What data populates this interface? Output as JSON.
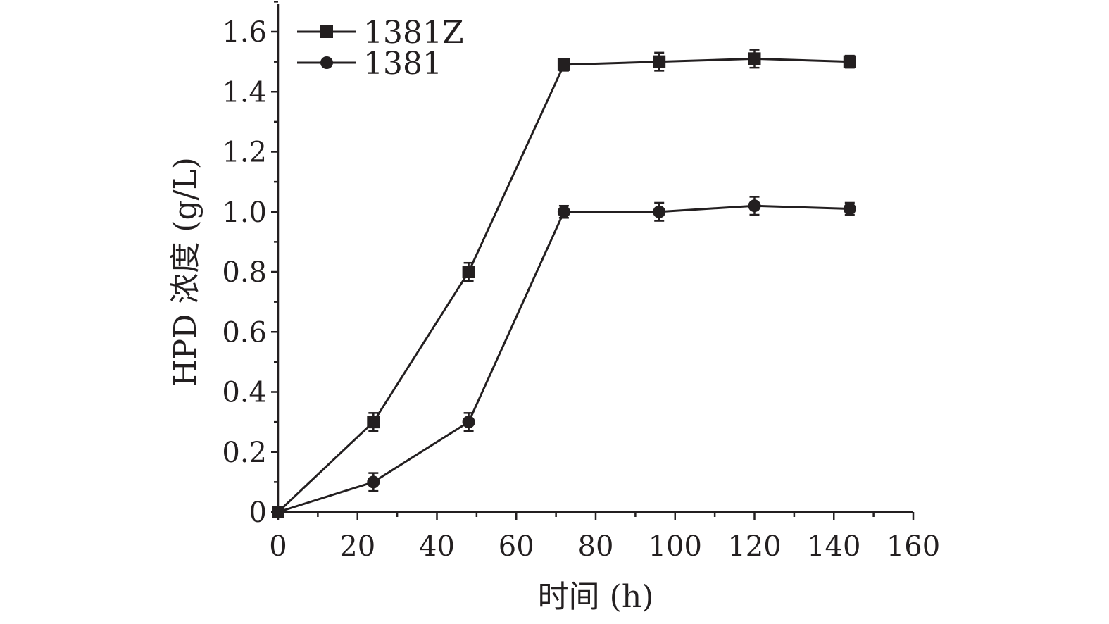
{
  "chart_data": {
    "type": "line",
    "xlabel": "时间 (h)",
    "ylabel": "HPD 浓度 (g/L)",
    "xlim": [
      0,
      160
    ],
    "ylim": [
      0,
      1.7
    ],
    "xticks": [
      0,
      20,
      40,
      60,
      80,
      100,
      120,
      140,
      160
    ],
    "xtick_labels": [
      "0",
      "20",
      "40",
      "60",
      "80",
      "100",
      "120",
      "140",
      "160"
    ],
    "yticks": [
      0,
      0.2,
      0.4,
      0.6,
      0.8,
      1.0,
      1.2,
      1.4,
      1.6
    ],
    "ytick_labels": [
      "0",
      "0.2",
      "0.4",
      "0.6",
      "0.8",
      "1.0",
      "1.2",
      "1.4",
      "1.6"
    ],
    "grid": false,
    "legend_position": "top-left",
    "series": [
      {
        "name": "1381Z",
        "marker": "square",
        "color": "#231f20",
        "x": [
          0,
          24,
          48,
          72,
          96,
          120,
          144
        ],
        "y": [
          0,
          0.3,
          0.8,
          1.49,
          1.5,
          1.51,
          1.5
        ],
        "error": [
          0,
          0.03,
          0.03,
          0.02,
          0.03,
          0.03,
          0.02
        ]
      },
      {
        "name": "1381",
        "marker": "circle",
        "color": "#231f20",
        "x": [
          0,
          24,
          48,
          72,
          96,
          120,
          144
        ],
        "y": [
          0,
          0.1,
          0.3,
          1.0,
          1.0,
          1.02,
          1.01
        ],
        "error": [
          0,
          0.03,
          0.03,
          0.02,
          0.03,
          0.03,
          0.02
        ]
      }
    ]
  }
}
